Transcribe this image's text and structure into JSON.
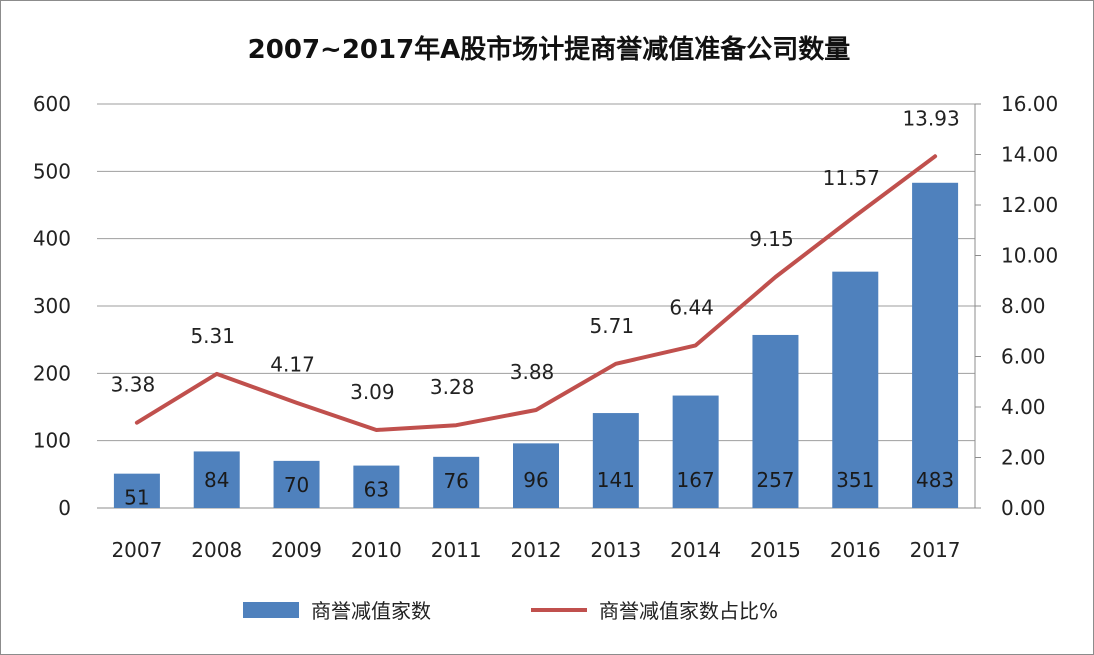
{
  "chart_data": {
    "type": "bar",
    "title": "2007~2017年A股市场计提商誉减值准备公司数量",
    "categories": [
      "2007",
      "2008",
      "2009",
      "2010",
      "2011",
      "2012",
      "2013",
      "2014",
      "2015",
      "2016",
      "2017"
    ],
    "series": [
      {
        "name": "商誉减值家数",
        "type": "bar",
        "axis": "left",
        "color": "#4f81bd",
        "values": [
          51,
          84,
          70,
          63,
          76,
          96,
          141,
          167,
          257,
          351,
          483
        ]
      },
      {
        "name": "商誉减值家数占比%",
        "type": "line",
        "axis": "right",
        "color": "#c0504d",
        "values": [
          3.38,
          5.31,
          4.17,
          3.09,
          3.28,
          3.88,
          5.71,
          6.44,
          9.15,
          11.57,
          13.93
        ]
      }
    ],
    "ylim_left": [
      0,
      600
    ],
    "yticks_left": [
      "0",
      "100",
      "200",
      "300",
      "400",
      "500",
      "600"
    ],
    "ylim_right": [
      0,
      16
    ],
    "yticks_right": [
      "0.00",
      "2.00",
      "4.00",
      "6.00",
      "8.00",
      "10.00",
      "12.00",
      "14.00",
      "16.00"
    ],
    "grid": true,
    "legend_position": "bottom"
  }
}
